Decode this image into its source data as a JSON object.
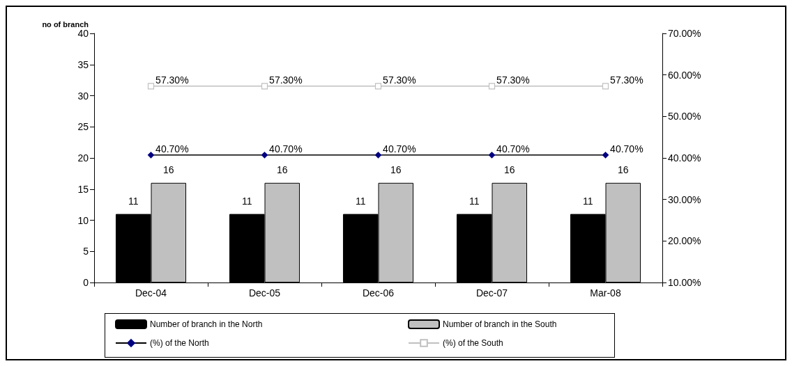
{
  "chart_data": {
    "type": "bar",
    "ylabel": "no of branch",
    "categories": [
      "Dec-04",
      "Dec-05",
      "Dec-06",
      "Dec-07",
      "Mar-08"
    ],
    "series": [
      {
        "name": "Number of branch in the North",
        "color": "#000000",
        "values": [
          11,
          11,
          11,
          11,
          11
        ]
      },
      {
        "name": "Number of branch in the South",
        "color": "#c0c0c0",
        "values": [
          16,
          16,
          16,
          16,
          16
        ]
      },
      {
        "name": "(%) of the North",
        "type": "line",
        "axis": "y2",
        "color": "#000080",
        "marker": "diamond",
        "values": [
          40.7,
          40.7,
          40.7,
          40.7,
          40.7
        ],
        "value_labels": [
          "40.70%",
          "40.70%",
          "40.70%",
          "40.70%",
          "40.70%"
        ]
      },
      {
        "name": "(%) of the South",
        "type": "line",
        "axis": "y2",
        "color": "#c0c0c0",
        "marker": "square",
        "values": [
          57.3,
          57.3,
          57.3,
          57.3,
          57.3
        ],
        "value_labels": [
          "57.30%",
          "57.30%",
          "57.30%",
          "57.30%",
          "57.30%"
        ]
      }
    ],
    "ylim": [
      0,
      40
    ],
    "yticks": [
      0,
      5,
      10,
      15,
      20,
      25,
      30,
      35,
      40
    ],
    "y2lim": [
      10,
      70
    ],
    "y2ticks": [
      {
        "value": 10,
        "label": "10.00%"
      },
      {
        "value": 20,
        "label": "20.00%"
      },
      {
        "value": 30,
        "label": "30.00%"
      },
      {
        "value": 40,
        "label": "40.00%"
      },
      {
        "value": 50,
        "label": "50.00%"
      },
      {
        "value": 60,
        "label": "60.00%"
      },
      {
        "value": 70,
        "label": "70.00%"
      }
    ],
    "data_labels": true,
    "grid": false,
    "legend": "bottom"
  }
}
